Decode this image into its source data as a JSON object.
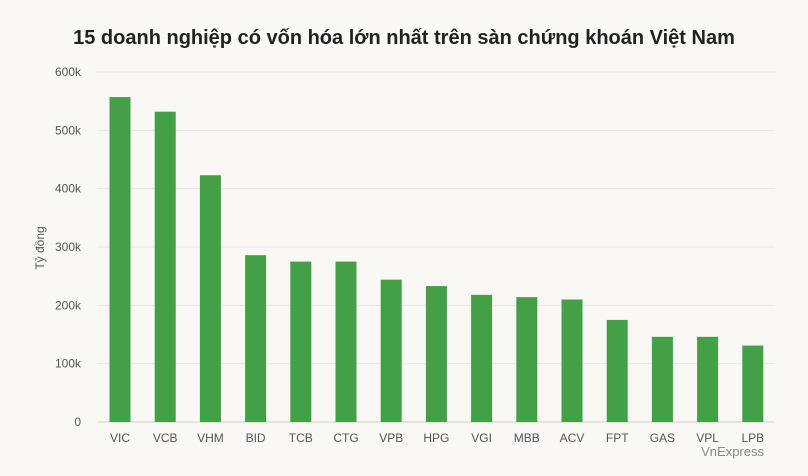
{
  "chart_data": {
    "type": "bar",
    "title": "15 doanh nghiệp có vốn hóa lớn nhất trên sàn chứng khoán Việt Nam",
    "ylabel": "Tỷ đồng",
    "xlabel": "",
    "categories": [
      "VIC",
      "VCB",
      "VHM",
      "BID",
      "TCB",
      "CTG",
      "VPB",
      "HPG",
      "VGI",
      "MBB",
      "ACV",
      "FPT",
      "GAS",
      "VPL",
      "LPB"
    ],
    "values": [
      557000,
      532000,
      423000,
      286000,
      275000,
      275000,
      244000,
      233000,
      218000,
      214000,
      210000,
      175000,
      146000,
      146000,
      131000
    ],
    "ylim": [
      0,
      600000
    ],
    "yticks": [
      0,
      100000,
      200000,
      300000,
      400000,
      500000,
      600000
    ],
    "ytick_labels": [
      "0",
      "100k",
      "200k",
      "300k",
      "400k",
      "500k",
      "600k"
    ],
    "grid": true,
    "bar_color": "#43a047",
    "credit": "VnExpress"
  }
}
